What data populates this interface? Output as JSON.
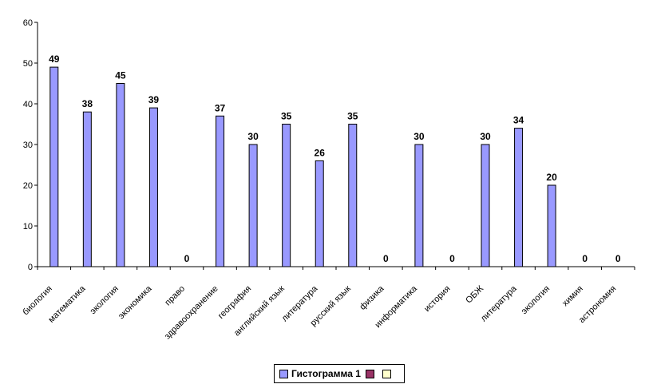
{
  "chart_data": {
    "type": "bar",
    "categories": [
      "биология",
      "математика",
      "экология",
      "экономика",
      "право",
      "здравоохранение",
      "география",
      "английский язык",
      "литература",
      "русский язык",
      "физика",
      "информатика",
      "история",
      "ОБЖ",
      "литература",
      "экология",
      "химия",
      "астрономия"
    ],
    "series": [
      {
        "name": "Гистограмма 1",
        "values": [
          49,
          38,
          45,
          39,
          0,
          37,
          30,
          35,
          26,
          35,
          0,
          30,
          0,
          30,
          34,
          20,
          0,
          0
        ]
      }
    ],
    "yticks": [
      0,
      10,
      20,
      30,
      40,
      50,
      60
    ],
    "ylim": [
      0,
      60
    ],
    "data_labels": true,
    "legend_position": "bottom",
    "grid": false,
    "colors": {
      "series1": "#9999ff",
      "series2": "#993366",
      "series3": "#ffffcc",
      "bar_outline": "#000000"
    }
  },
  "legend": {
    "entries": [
      "Гистограмма 1",
      "",
      ""
    ]
  }
}
